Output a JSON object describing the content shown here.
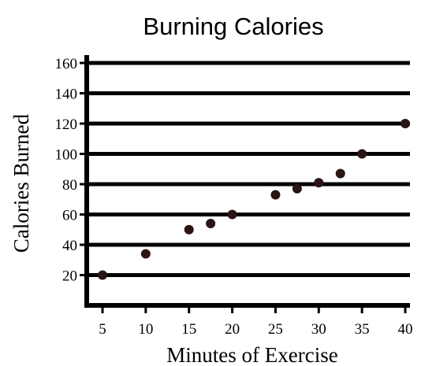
{
  "chart_data": {
    "type": "scatter",
    "title": "Burning Calories",
    "xlabel": "Minutes of Exercise",
    "ylabel": "Calories Burned",
    "xlim": [
      5,
      40
    ],
    "ylim": [
      0,
      160
    ],
    "x_ticks": [
      5,
      10,
      15,
      20,
      25,
      30,
      35,
      40
    ],
    "y_ticks": [
      20,
      40,
      60,
      80,
      100,
      120,
      140,
      160
    ],
    "grid": "horizontal",
    "legend": "none",
    "point_color": "#2a1414",
    "points": [
      {
        "x": 5,
        "y": 20
      },
      {
        "x": 10,
        "y": 34
      },
      {
        "x": 15,
        "y": 50
      },
      {
        "x": 17.5,
        "y": 54
      },
      {
        "x": 20,
        "y": 60
      },
      {
        "x": 25,
        "y": 73
      },
      {
        "x": 27.5,
        "y": 77
      },
      {
        "x": 30,
        "y": 81
      },
      {
        "x": 32.5,
        "y": 87
      },
      {
        "x": 35,
        "y": 100
      },
      {
        "x": 40,
        "y": 120
      }
    ]
  }
}
